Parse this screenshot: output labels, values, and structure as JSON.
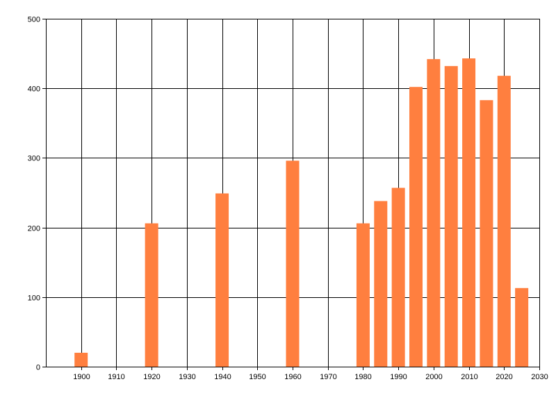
{
  "chart_data": {
    "type": "bar",
    "x": [
      1900,
      1920,
      1940,
      1960,
      1980,
      1985,
      1990,
      1995,
      2000,
      2005,
      2010,
      2015,
      2020,
      2025
    ],
    "values": [
      20,
      206,
      249,
      296,
      206,
      238,
      257,
      402,
      442,
      432,
      443,
      383,
      418,
      113
    ],
    "xlim": [
      1890,
      2030
    ],
    "ylim": [
      0,
      500
    ],
    "xticks": [
      1900,
      1910,
      1920,
      1930,
      1940,
      1950,
      1960,
      1970,
      1980,
      1990,
      2000,
      2010,
      2020,
      2030
    ],
    "yticks": [
      0,
      100,
      200,
      300,
      400,
      500
    ],
    "grid": true,
    "bar_color": "#ff7f3f",
    "grid_color": "#000000"
  }
}
